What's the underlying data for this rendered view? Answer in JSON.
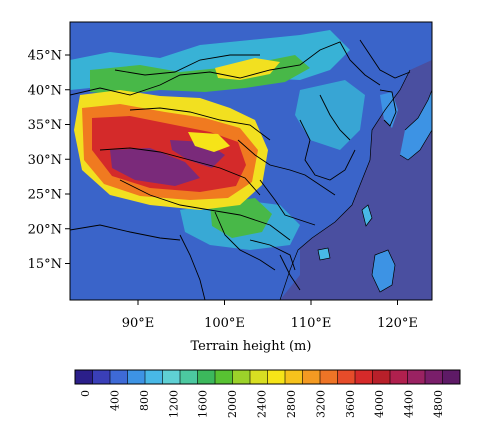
{
  "map": {
    "x_label": "Terrain height (m)",
    "lat_ticks": [
      {
        "deg": 45,
        "label": "45°N"
      },
      {
        "deg": 40,
        "label": "40°N"
      },
      {
        "deg": 35,
        "label": "35°N"
      },
      {
        "deg": 30,
        "label": "30°N"
      },
      {
        "deg": 25,
        "label": "25°N"
      },
      {
        "deg": 20,
        "label": "20°N"
      },
      {
        "deg": 15,
        "label": "15°N"
      }
    ],
    "lon_ticks": [
      {
        "deg": 90,
        "label": "90°E"
      },
      {
        "deg": 100,
        "label": "100°E"
      },
      {
        "deg": 110,
        "label": "110°E"
      },
      {
        "deg": 120,
        "label": "120°E"
      }
    ],
    "colors": {
      "ocean": "#4a4fa0",
      "lowland": "#3a64c9",
      "hills": "#38c0d8",
      "green": "#48b848",
      "yellow": "#f2e020",
      "orange": "#f07a20",
      "red": "#d42a2a",
      "purple": "#7a2a7a",
      "boundary": "#000000"
    }
  },
  "colorbar": {
    "labels": [
      "0",
      "400",
      "800",
      "1200",
      "1600",
      "2000",
      "2400",
      "2800",
      "3200",
      "3600",
      "4000",
      "4400",
      "4800"
    ],
    "colors": [
      "#2b1f8a",
      "#3a3fb8",
      "#3e6ad6",
      "#3d93e4",
      "#48b8e6",
      "#5fd0d4",
      "#4cc8a0",
      "#3cb85c",
      "#58c232",
      "#9cd22a",
      "#d8de22",
      "#f6e418",
      "#f6c21c",
      "#f49a22",
      "#ee7426",
      "#e64c2a",
      "#d62a2a",
      "#b8202a",
      "#b0204e",
      "#9a2262",
      "#7a1e6a",
      "#5e1a66"
    ]
  }
}
